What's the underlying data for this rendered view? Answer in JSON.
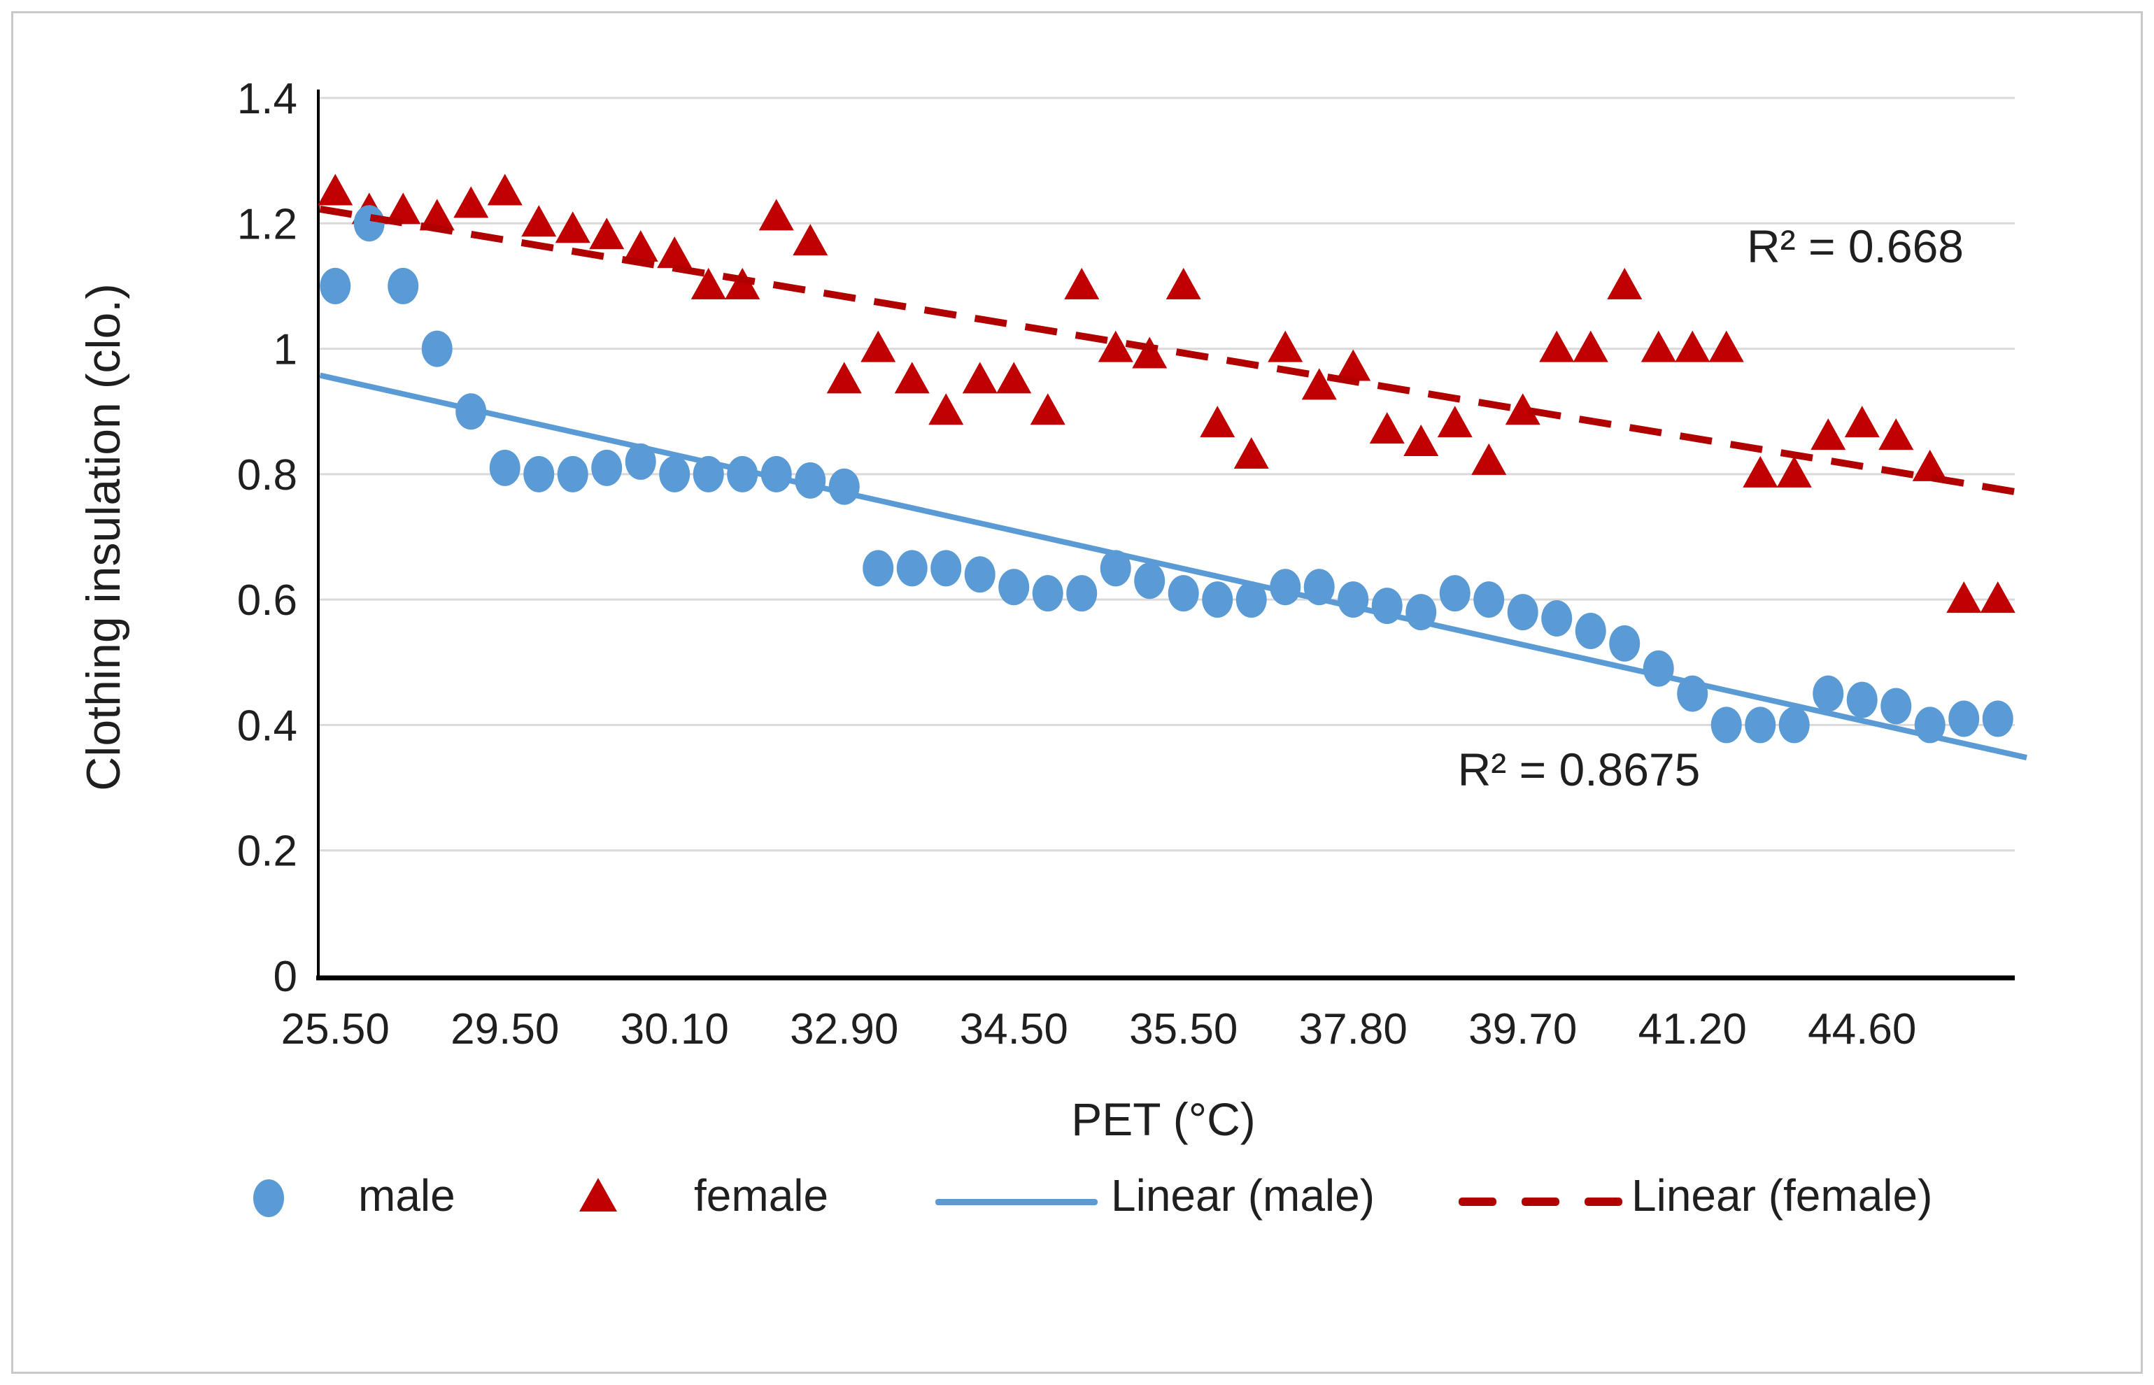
{
  "chart_data": {
    "type": "scatter",
    "title": "",
    "xlabel": "PET (°C)",
    "ylabel": "Clothing insulation (clo.)",
    "ylim": [
      0,
      1.4
    ],
    "grid": "horizontal",
    "legend_position": "bottom",
    "n_points": 50,
    "x_label_every": 5,
    "x_tick_labels": [
      "25.50",
      "29.50",
      "30.10",
      "32.90",
      "34.50",
      "35.50",
      "37.80",
      "39.70",
      "41.20",
      "44.60"
    ],
    "y_tick_labels": [
      "1.4",
      "1.2",
      "1",
      "0.8",
      "0.6",
      "0.4",
      "0.2",
      "0"
    ],
    "series": [
      {
        "name": "male",
        "marker": "circle",
        "color": "#5B9BD5",
        "values": [
          1.1,
          1.2,
          1.1,
          1.0,
          0.9,
          0.81,
          0.8,
          0.8,
          0.81,
          0.82,
          0.8,
          0.8,
          0.8,
          0.8,
          0.79,
          0.78,
          0.65,
          0.65,
          0.65,
          0.64,
          0.62,
          0.61,
          0.61,
          0.65,
          0.63,
          0.61,
          0.6,
          0.6,
          0.62,
          0.62,
          0.6,
          0.59,
          0.58,
          0.61,
          0.6,
          0.58,
          0.57,
          0.55,
          0.53,
          0.49,
          0.45,
          0.4,
          0.4,
          0.4,
          0.45,
          0.44,
          0.43,
          0.4,
          0.41,
          0.41
        ]
      },
      {
        "name": "female",
        "marker": "triangle",
        "color": "#C00000",
        "values": [
          1.25,
          1.22,
          1.22,
          1.21,
          1.23,
          1.25,
          1.2,
          1.19,
          1.18,
          1.16,
          1.15,
          1.1,
          1.1,
          1.21,
          1.17,
          0.95,
          1.0,
          0.95,
          0.9,
          0.95,
          0.95,
          0.9,
          1.1,
          1.0,
          0.99,
          1.1,
          0.88,
          0.83,
          1.0,
          0.94,
          0.97,
          0.87,
          0.85,
          0.88,
          0.82,
          0.9,
          1.0,
          1.0,
          1.1,
          1.0,
          1.0,
          1.0,
          0.8,
          0.8,
          0.86,
          0.88,
          0.86,
          0.81,
          0.6,
          0.6
        ]
      }
    ],
    "trendlines": [
      {
        "name": "Linear (male)",
        "series": "male",
        "style": "solid",
        "color": "#5B9BD5",
        "r2_label": "R² = 0.8675"
      },
      {
        "name": "Linear (female)",
        "series": "female",
        "style": "dashed",
        "color": "#B00000",
        "r2_label": "R² = 0.668"
      }
    ],
    "colors": {
      "male": "#5B9BD5",
      "female": "#C00000",
      "trend_female": "#B00000",
      "gridline": "#D9D9D9",
      "axis": "#000000",
      "frame": "#c9c9c9"
    }
  }
}
